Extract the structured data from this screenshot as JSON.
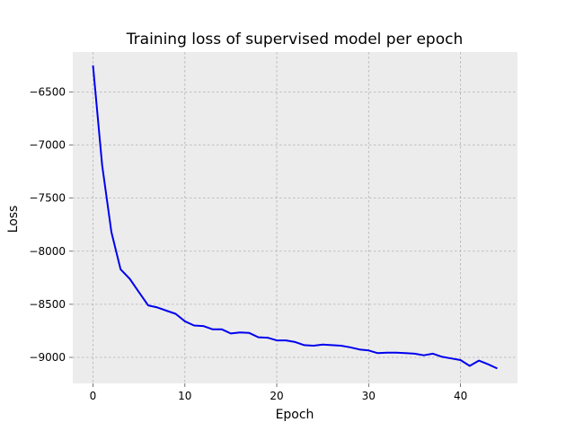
{
  "chart_data": {
    "type": "line",
    "title": "Training loss of supervised model per epoch",
    "xlabel": "Epoch",
    "ylabel": "Loss",
    "xlim": [
      -2.2,
      46.2
    ],
    "ylim": [
      -9245,
      -6125
    ],
    "xticks": [
      0,
      10,
      20,
      30,
      40
    ],
    "yticks": [
      -6500,
      -7000,
      -7500,
      -8000,
      -8500,
      -9000
    ],
    "grid": true,
    "legend": "none",
    "colors": {
      "line": "#0000ee",
      "plot_bg": "#ececec",
      "grid": "#b0b0b0"
    },
    "series": [
      {
        "x": [
          0,
          1,
          2,
          3,
          4,
          5,
          6,
          7,
          8,
          9,
          10,
          11,
          12,
          13,
          14,
          15,
          16,
          17,
          18,
          19,
          20,
          21,
          22,
          23,
          24,
          25,
          26,
          27,
          28,
          29,
          30,
          31,
          32,
          33,
          34,
          35,
          36,
          37,
          38,
          39,
          40,
          41,
          42,
          43,
          44
        ],
        "values": [
          -6250,
          -7190,
          -7820,
          -8170,
          -8260,
          -8385,
          -8510,
          -8530,
          -8560,
          -8590,
          -8660,
          -8700,
          -8705,
          -8735,
          -8735,
          -8775,
          -8765,
          -8770,
          -8810,
          -8815,
          -8840,
          -8840,
          -8855,
          -8885,
          -8890,
          -8880,
          -8885,
          -8890,
          -8905,
          -8925,
          -8935,
          -8960,
          -8955,
          -8955,
          -8960,
          -8965,
          -8980,
          -8965,
          -8995,
          -9010,
          -9025,
          -9080,
          -9030,
          -9065,
          -9105
        ]
      }
    ]
  }
}
